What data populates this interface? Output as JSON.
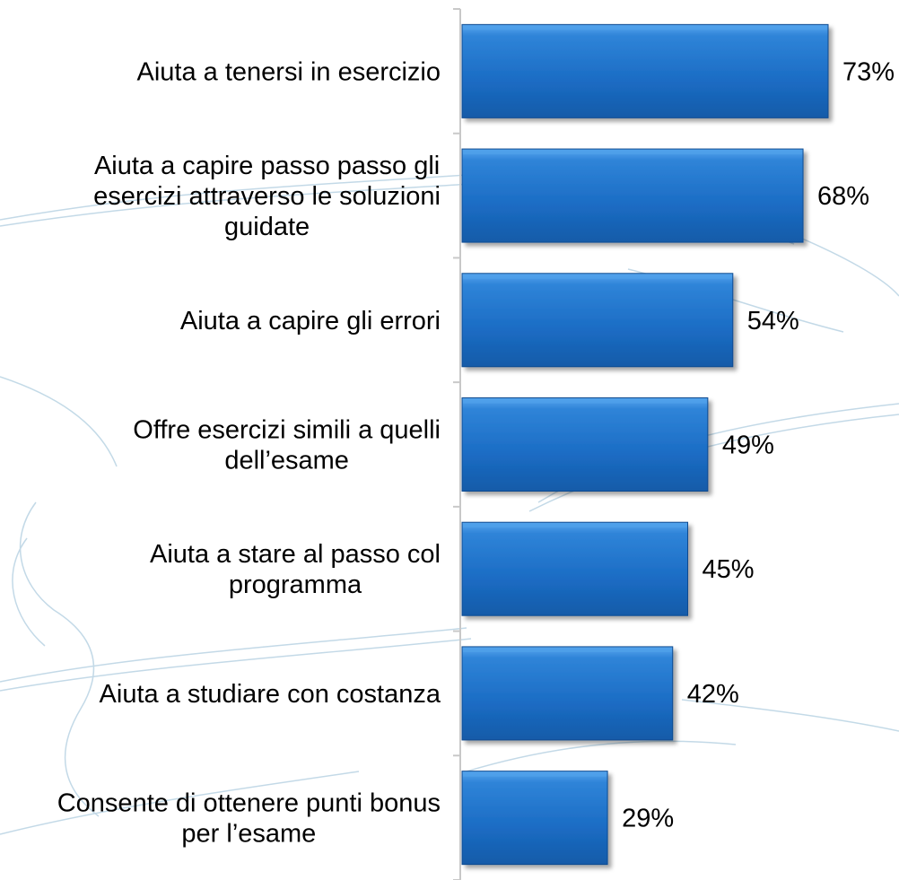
{
  "chart_data": {
    "type": "bar",
    "orientation": "horizontal",
    "categories": [
      [
        "Aiuta a tenersi in esercizio"
      ],
      [
        "Aiuta a capire passo passo gli",
        "esercizi attraverso le soluzioni",
        "guidate"
      ],
      [
        "Aiuta a capire gli errori"
      ],
      [
        "Offre esercizi simili a quelli",
        "dell’esame"
      ],
      [
        "Aiuta a stare al passo col",
        "programma"
      ],
      [
        "Aiuta a studiare con costanza"
      ],
      [
        "Consente di ottenere punti bonus",
        "per l’esame"
      ]
    ],
    "values": [
      73,
      68,
      54,
      49,
      45,
      42,
      29
    ],
    "value_labels": [
      "73%",
      "68%",
      "54%",
      "49%",
      "45%",
      "42%",
      "29%"
    ],
    "value_unit": "%",
    "xlim": [
      0,
      100
    ],
    "grid": false,
    "legend": "none",
    "title": "",
    "xlabel": "",
    "ylabel": "",
    "colors": {
      "bar_fill": "#1c6fc7",
      "bar_highlight": "#4fa0ea",
      "bar_shadow": "#0d4a8f",
      "axis": "#c8c8c8",
      "ornament": "#b9d3e3"
    }
  }
}
